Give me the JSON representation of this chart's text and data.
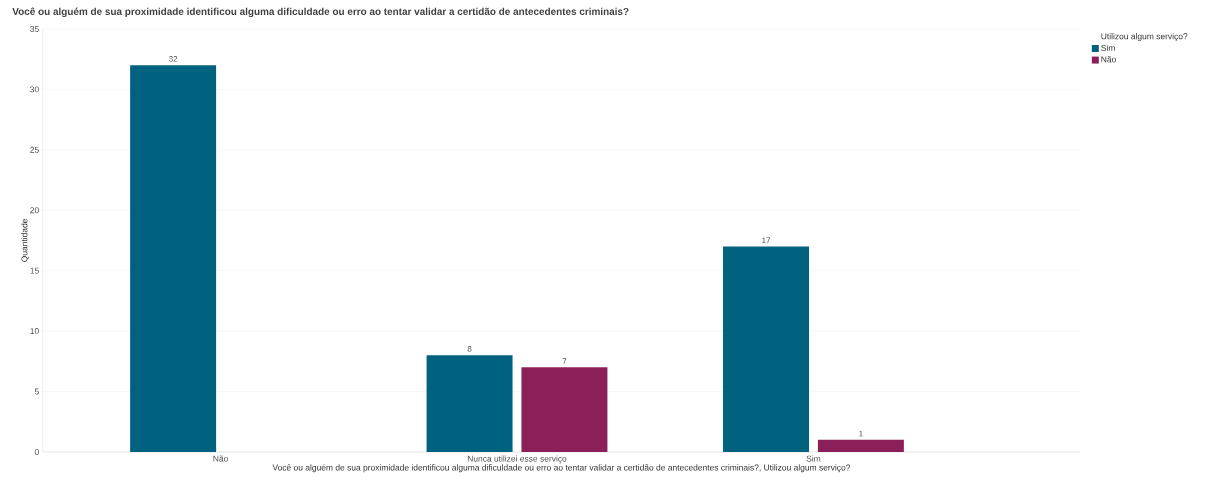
{
  "chart_data": {
    "type": "bar",
    "title": "Você ou alguém de sua proximidade identificou alguma dificuldade ou erro ao tentar validar a certidão de antecedentes criminais?",
    "xlabel": "Você ou alguém de sua proximidade identificou alguma dificuldade ou erro ao tentar validar a certidão de antecedentes criminais?, Utilizou algum serviço?",
    "ylabel": "Quantidade",
    "legend_title": "Utilizou algum serviço?",
    "categories": [
      "Não",
      "Nunca utilizei esse serviço",
      "Sim"
    ],
    "series": [
      {
        "name": "Sim",
        "color": "#00627e",
        "values": [
          32,
          8,
          17
        ]
      },
      {
        "name": "Não",
        "color": "#8a1f5a",
        "values": [
          null,
          7,
          1
        ]
      }
    ],
    "ylim": [
      0,
      35
    ],
    "yticks": [
      0,
      5,
      10,
      15,
      20,
      25,
      30,
      35
    ],
    "grid": "y",
    "legend": "top right",
    "data_labels": true
  }
}
